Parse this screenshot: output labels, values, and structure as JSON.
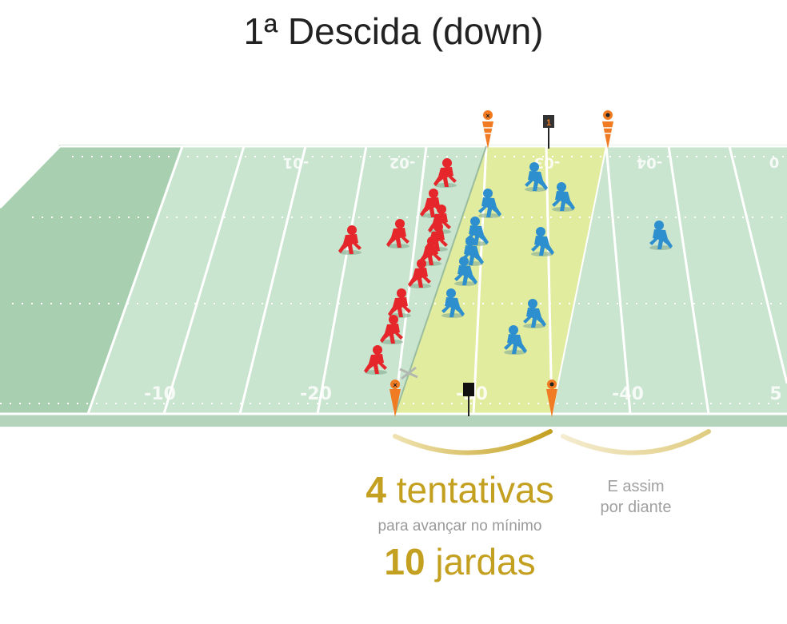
{
  "title": "1ª Descida (down)",
  "field_top_numbers": [
    "-01",
    "-02",
    "-03",
    "-04",
    "0"
  ],
  "field_bottom_numbers": [
    "-10",
    "-20",
    "-30",
    "-40",
    "5"
  ],
  "down_marker": "1",
  "caption": {
    "attempts_number": "4",
    "attempts_word": "tentativas",
    "advance_text": "para avançar no mínimo",
    "yards_number": "10",
    "yards_word": "jardas",
    "and_so_on_line1": "E assim",
    "and_so_on_line2": "por diante"
  },
  "colors": {
    "offense": "#e5262b",
    "defense": "#2e8fce",
    "field": "#c9e4cf",
    "highlight_zone": "#e4ec9b",
    "accent": "#c4a020"
  }
}
